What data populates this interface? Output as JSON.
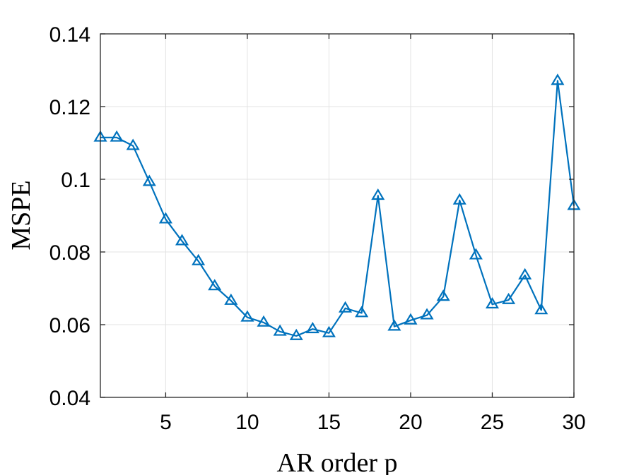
{
  "chart_data": {
    "type": "line",
    "title": "",
    "xlabel": "AR order p",
    "ylabel": "MSPE",
    "xlim": [
      1,
      30
    ],
    "ylim": [
      0.04,
      0.14
    ],
    "xticks": [
      5,
      10,
      15,
      20,
      25,
      30
    ],
    "xtick_labels": [
      "5",
      "10",
      "15",
      "20",
      "25",
      "30"
    ],
    "yticks": [
      0.04,
      0.06,
      0.08,
      0.1,
      0.12,
      0.14
    ],
    "ytick_labels": [
      "0.04",
      "0.06",
      "0.08",
      "0.1",
      "0.12",
      "0.14"
    ],
    "grid": true,
    "series": [
      {
        "marker": "triangle",
        "color": "#0072BD",
        "x": [
          1,
          2,
          3,
          4,
          5,
          6,
          7,
          8,
          9,
          10,
          11,
          12,
          13,
          14,
          15,
          16,
          17,
          18,
          19,
          20,
          21,
          22,
          23,
          24,
          25,
          26,
          27,
          28,
          29,
          30
        ],
        "y": [
          0.1115,
          0.1115,
          0.1092,
          0.0993,
          0.089,
          0.083,
          0.0775,
          0.0706,
          0.0666,
          0.062,
          0.0606,
          0.0581,
          0.0569,
          0.0588,
          0.0577,
          0.0645,
          0.0632,
          0.0955,
          0.0595,
          0.0612,
          0.0626,
          0.0677,
          0.0942,
          0.0791,
          0.0656,
          0.0668,
          0.0736,
          0.064,
          0.1271,
          0.0927
        ]
      }
    ]
  }
}
